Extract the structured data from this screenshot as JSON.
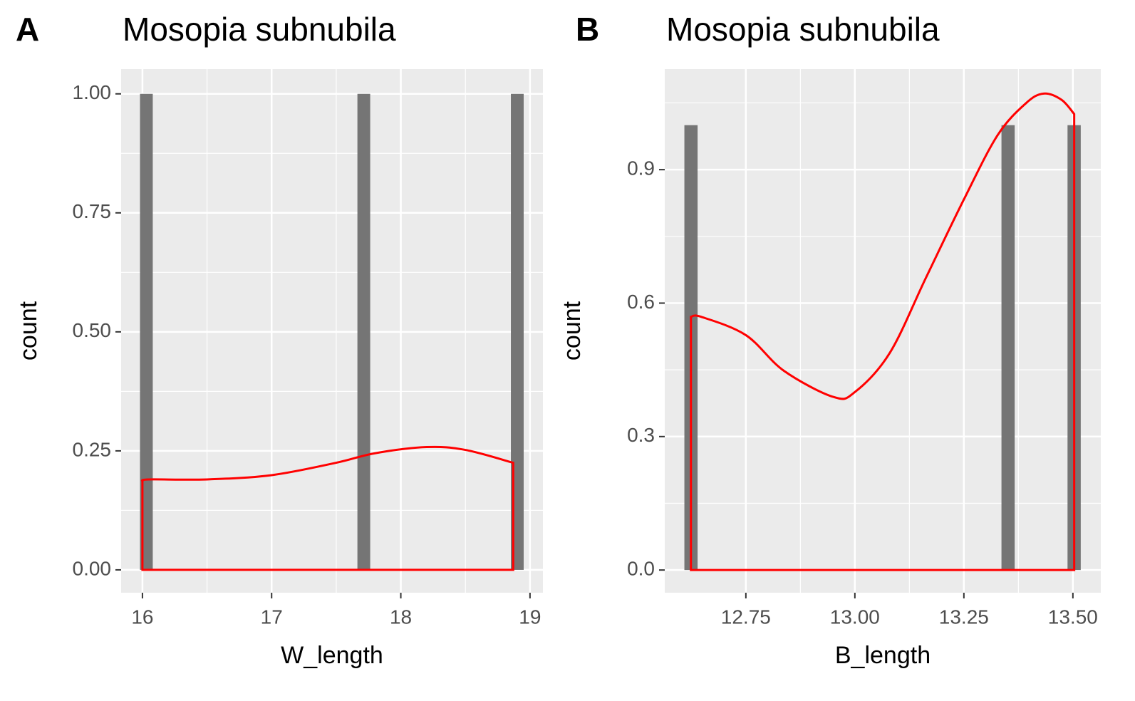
{
  "chart_data": [
    {
      "type": "histogram",
      "tag": "A",
      "title": "Mosopia subnubila",
      "xlabel": "W_length",
      "ylabel": "count",
      "bins": [
        15.981,
        16.08,
        16.179,
        16.278,
        16.377,
        16.476,
        16.575,
        16.674,
        16.773,
        16.872,
        16.971,
        17.07,
        17.169,
        17.268,
        17.367,
        17.466,
        17.565,
        17.664,
        17.763,
        17.862,
        17.961,
        18.06,
        18.159,
        18.258,
        18.357,
        18.456,
        18.555,
        18.654,
        18.753,
        18.852,
        18.951
      ],
      "counts": [
        1,
        0,
        0,
        0,
        0,
        0,
        0,
        0,
        0,
        0,
        0,
        0,
        0,
        0,
        0,
        0,
        0,
        1,
        0,
        0,
        0,
        0,
        0,
        0,
        0,
        0,
        0,
        0,
        0,
        1
      ],
      "color": "#757575",
      "density": {
        "color": "#ff0000",
        "x": [
          16.0,
          16.05,
          16.5,
          17.0,
          17.5,
          17.8,
          18.2,
          18.5,
          18.87
        ],
        "values": [
          0.186,
          0.19,
          0.19,
          0.199,
          0.225,
          0.245,
          0.258,
          0.252,
          0.225
        ]
      },
      "xlim": [
        15.835,
        19.1
      ],
      "ylim": [
        -0.048,
        1.052
      ],
      "xticks": [
        16,
        17,
        18,
        19
      ],
      "yticks": [
        {
          "value": 0,
          "label": "0.00"
        },
        {
          "value": 0.25,
          "label": "0.25"
        },
        {
          "value": 0.5,
          "label": "0.50"
        },
        {
          "value": 0.75,
          "label": "0.75"
        },
        {
          "value": 1,
          "label": "1.00"
        }
      ],
      "grid": true,
      "minor_grid": true
    },
    {
      "type": "histogram",
      "tag": "B",
      "title": "Mosopia subnubila",
      "xlabel": "B_length",
      "ylabel": "count",
      "bins": [
        12.609,
        12.6393,
        12.6696,
        12.6999,
        12.7302,
        12.7605,
        12.7908,
        12.8211,
        12.8514,
        12.8817,
        12.912,
        12.9423,
        12.9726,
        13.0029,
        13.0332,
        13.0635,
        13.0938,
        13.1241,
        13.1544,
        13.1847,
        13.215,
        13.2453,
        13.2756,
        13.3059,
        13.3362,
        13.3665,
        13.3968,
        13.4271,
        13.4574,
        13.4877,
        13.518
      ],
      "counts": [
        1,
        0,
        0,
        0,
        0,
        0,
        0,
        0,
        0,
        0,
        0,
        0,
        0,
        0,
        0,
        0,
        0,
        0,
        0,
        0,
        0,
        0,
        0,
        0,
        1,
        0,
        0,
        0,
        0,
        1
      ],
      "color": "#757575",
      "density": {
        "color": "#ff0000",
        "x": [
          12.624,
          12.648,
          12.75,
          12.837,
          12.951,
          13.0,
          13.08,
          13.163,
          13.25,
          13.327,
          13.392,
          13.433,
          13.474,
          13.503
        ],
        "values": [
          0.569,
          0.569,
          0.528,
          0.448,
          0.389,
          0.4,
          0.488,
          0.657,
          0.833,
          0.977,
          1.049,
          1.071,
          1.057,
          1.025
        ]
      },
      "xlim": [
        12.564,
        13.564
      ],
      "ylim": [
        -0.051,
        1.126
      ],
      "xticks": [
        12.75,
        {
          "value": 13,
          "label": "13.00"
        },
        13.25,
        {
          "value": 13.5,
          "label": "13.50"
        }
      ],
      "yticks": [
        {
          "value": 0,
          "label": "0.0"
        },
        0.3,
        0.6,
        0.9
      ],
      "grid": true,
      "minor_grid": true
    }
  ]
}
